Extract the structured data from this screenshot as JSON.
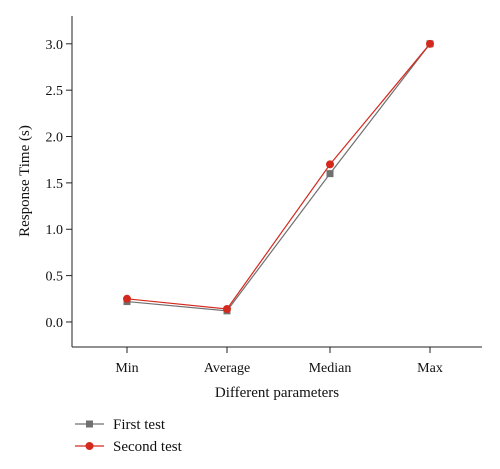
{
  "chart_data": {
    "type": "line",
    "categories": [
      "Min",
      "Average",
      "Median",
      "Max"
    ],
    "xlabel": "Different parameters",
    "ylabel": "Response Time (s)",
    "ylim": [
      -0.27,
      3.3
    ],
    "yticks": [
      0.0,
      0.5,
      1.0,
      1.5,
      2.0,
      2.5,
      3.0
    ],
    "ytick_labels": [
      "0.0",
      "0.5",
      "1.0",
      "1.5",
      "2.0",
      "2.5",
      "3.0"
    ],
    "grid": false,
    "legend_position": "bottom-left",
    "series": [
      {
        "name": "First test",
        "values": [
          0.22,
          0.12,
          1.6,
          3.0
        ],
        "color": "#707070",
        "marker": "square"
      },
      {
        "name": "Second test",
        "values": [
          0.25,
          0.14,
          1.7,
          3.0
        ],
        "color": "#d42a1e",
        "marker": "circle"
      }
    ]
  }
}
